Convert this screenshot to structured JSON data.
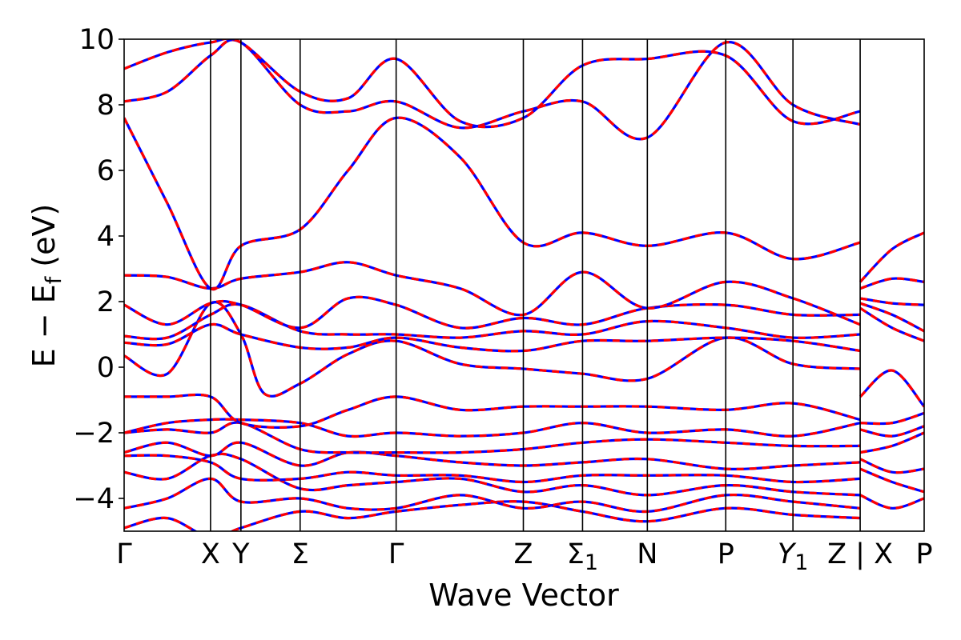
{
  "chart_data": {
    "type": "line",
    "xlabel": "Wave Vector",
    "ylabel": "E − E",
    "ylabel_sub": "f",
    "ylabel_unit": " (eV)",
    "ylim": [
      -5,
      10
    ],
    "yticks": [
      "−4",
      "−2",
      "0",
      "2",
      "4",
      "6",
      "8",
      "10"
    ],
    "ytick_values": [
      -4,
      -2,
      0,
      2,
      4,
      6,
      8,
      10
    ],
    "grid": false,
    "xlim": [
      0,
      1
    ],
    "kpoints": [
      {
        "label": "Γ",
        "x": 0.0,
        "sub": ""
      },
      {
        "label": "X",
        "x": 0.108,
        "sub": ""
      },
      {
        "label": "Y",
        "x": 0.146,
        "sub": ""
      },
      {
        "label": "Σ",
        "x": 0.22,
        "sub": ""
      },
      {
        "label": "Γ",
        "x": 0.34,
        "sub": ""
      },
      {
        "label": "Z",
        "x": 0.499,
        "sub": ""
      },
      {
        "label": "Σ",
        "x": 0.573,
        "sub": "1"
      },
      {
        "label": "N",
        "x": 0.654,
        "sub": ""
      },
      {
        "label": "P",
        "x": 0.752,
        "sub": ""
      },
      {
        "label": "Y",
        "x": 0.836,
        "sub": "1"
      },
      {
        "label": "Z | X",
        "x": 0.92,
        "sub": ""
      },
      {
        "label": "P",
        "x": 1.0,
        "sub": ""
      }
    ],
    "series_styles": [
      {
        "color": "#0000ff",
        "dash": "",
        "width": 3.2
      },
      {
        "color": "#ff0000",
        "dash": "9,7",
        "width": 3.2
      }
    ],
    "bands": [
      {
        "x": [
          0,
          0.054,
          0.108,
          0.146,
          0.22,
          0.28,
          0.34,
          0.42,
          0.499,
          0.573,
          0.654,
          0.752,
          0.836,
          0.92
        ],
        "y": [
          -4.9,
          -4.6,
          -5.2,
          -4.9,
          -4.4,
          -4.6,
          -4.4,
          -4.2,
          -4.1,
          -4.4,
          -4.7,
          -4.3,
          -4.5,
          -4.6
        ]
      },
      {
        "x": [
          0,
          0.054,
          0.108,
          0.146,
          0.22,
          0.28,
          0.34,
          0.42,
          0.499,
          0.573,
          0.654,
          0.752,
          0.836,
          0.92
        ],
        "y": [
          -4.3,
          -4.0,
          -3.4,
          -4.1,
          -4.0,
          -4.3,
          -4.3,
          -3.9,
          -4.3,
          -4.1,
          -4.4,
          -3.9,
          -4.1,
          -4.3
        ]
      },
      {
        "x": [
          0,
          0.054,
          0.108,
          0.146,
          0.22,
          0.28,
          0.34,
          0.42,
          0.499,
          0.573,
          0.654,
          0.752,
          0.836,
          0.92
        ],
        "y": [
          -3.2,
          -3.4,
          -2.7,
          -2.8,
          -3.7,
          -3.6,
          -3.5,
          -3.4,
          -3.8,
          -3.6,
          -3.9,
          -3.6,
          -3.8,
          -3.9
        ]
      },
      {
        "x": [
          0,
          0.054,
          0.108,
          0.146,
          0.22,
          0.28,
          0.34,
          0.42,
          0.499,
          0.573,
          0.654,
          0.752,
          0.836,
          0.92
        ],
        "y": [
          -2.7,
          -2.7,
          -2.9,
          -3.4,
          -3.4,
          -3.2,
          -3.3,
          -3.3,
          -3.5,
          -3.3,
          -3.3,
          -3.3,
          -3.5,
          -3.4
        ]
      },
      {
        "x": [
          0,
          0.054,
          0.108,
          0.146,
          0.22,
          0.28,
          0.34,
          0.42,
          0.499,
          0.573,
          0.654,
          0.752,
          0.836,
          0.92
        ],
        "y": [
          -2.6,
          -2.3,
          -2.7,
          -2.3,
          -3.0,
          -2.6,
          -2.7,
          -2.9,
          -3.0,
          -2.9,
          -2.8,
          -3.1,
          -3.0,
          -2.9
        ]
      },
      {
        "x": [
          0,
          0.054,
          0.108,
          0.146,
          0.22,
          0.28,
          0.34,
          0.42,
          0.499,
          0.573,
          0.654,
          0.752,
          0.836,
          0.92
        ],
        "y": [
          -2.0,
          -1.9,
          -2.0,
          -1.7,
          -2.5,
          -2.6,
          -2.6,
          -2.6,
          -2.5,
          -2.3,
          -2.2,
          -2.3,
          -2.4,
          -2.4
        ]
      },
      {
        "x": [
          0,
          0.054,
          0.108,
          0.146,
          0.22,
          0.28,
          0.34,
          0.42,
          0.499,
          0.573,
          0.654,
          0.752,
          0.836,
          0.92
        ],
        "y": [
          -2.0,
          -1.7,
          -1.6,
          -1.6,
          -1.7,
          -2.1,
          -2.0,
          -2.1,
          -2.0,
          -1.7,
          -2.0,
          -1.9,
          -2.1,
          -1.7
        ]
      },
      {
        "x": [
          0,
          0.054,
          0.108,
          0.146,
          0.22,
          0.28,
          0.34,
          0.42,
          0.499,
          0.573,
          0.654,
          0.752,
          0.836,
          0.92
        ],
        "y": [
          -0.9,
          -0.9,
          -0.9,
          -1.7,
          -1.8,
          -1.3,
          -0.9,
          -1.3,
          -1.2,
          -1.2,
          -1.2,
          -1.3,
          -1.1,
          -1.6
        ]
      },
      {
        "x": [
          0,
          0.054,
          0.108,
          0.146,
          0.175,
          0.22,
          0.28,
          0.34,
          0.42,
          0.499,
          0.573,
          0.654,
          0.752,
          0.836,
          0.92
        ],
        "y": [
          0.35,
          -0.2,
          1.95,
          1.0,
          -0.8,
          -0.5,
          0.4,
          0.8,
          0.1,
          -0.05,
          -0.2,
          -0.35,
          0.9,
          0.1,
          -0.05
        ]
      },
      {
        "x": [
          0,
          0.054,
          0.108,
          0.146,
          0.22,
          0.28,
          0.34,
          0.42,
          0.499,
          0.573,
          0.654,
          0.752,
          0.836,
          0.92
        ],
        "y": [
          0.75,
          0.7,
          1.3,
          1.0,
          0.6,
          0.6,
          0.9,
          0.6,
          0.5,
          0.8,
          0.8,
          0.9,
          0.8,
          0.5
        ]
      },
      {
        "x": [
          0,
          0.054,
          0.108,
          0.146,
          0.22,
          0.28,
          0.34,
          0.42,
          0.499,
          0.573,
          0.654,
          0.752,
          0.836,
          0.92
        ],
        "y": [
          0.95,
          0.9,
          1.6,
          1.9,
          1.1,
          1.0,
          1.0,
          0.9,
          1.1,
          1.0,
          1.4,
          1.2,
          0.9,
          1.0
        ]
      },
      {
        "x": [
          0,
          0.054,
          0.108,
          0.146,
          0.22,
          0.28,
          0.34,
          0.42,
          0.499,
          0.573,
          0.654,
          0.752,
          0.836,
          0.92
        ],
        "y": [
          1.9,
          1.3,
          1.95,
          1.9,
          1.2,
          2.1,
          1.9,
          1.2,
          1.5,
          1.3,
          1.8,
          1.9,
          1.6,
          1.6
        ]
      },
      {
        "x": [
          0,
          0.054,
          0.108,
          0.146,
          0.22,
          0.28,
          0.34,
          0.42,
          0.499,
          0.573,
          0.654,
          0.752,
          0.836,
          0.92
        ],
        "y": [
          2.8,
          2.75,
          2.4,
          2.7,
          2.9,
          3.2,
          2.8,
          2.4,
          1.6,
          2.9,
          1.8,
          2.6,
          2.1,
          1.3
        ]
      },
      {
        "x": [
          0,
          0.054,
          0.108,
          0.146,
          0.22,
          0.28,
          0.34,
          0.42,
          0.499,
          0.573,
          0.654,
          0.752,
          0.836,
          0.92
        ],
        "y": [
          7.6,
          5.0,
          2.4,
          3.7,
          4.2,
          6.0,
          7.6,
          6.4,
          3.8,
          4.1,
          3.7,
          4.1,
          3.3,
          3.8
        ]
      },
      {
        "x": [
          0,
          0.054,
          0.108,
          0.146,
          0.22,
          0.28,
          0.34,
          0.42,
          0.499,
          0.573,
          0.654,
          0.752,
          0.836,
          0.92
        ],
        "y": [
          8.1,
          8.4,
          9.5,
          9.9,
          8.0,
          7.8,
          8.1,
          7.3,
          7.8,
          8.1,
          7.0,
          9.9,
          8.0,
          7.4
        ]
      },
      {
        "x": [
          0,
          0.054,
          0.108,
          0.146,
          0.22,
          0.28,
          0.34,
          0.42,
          0.499,
          0.573,
          0.654,
          0.752,
          0.836,
          0.92
        ],
        "y": [
          9.1,
          9.6,
          9.9,
          9.9,
          8.4,
          8.2,
          9.4,
          7.5,
          7.6,
          9.2,
          9.4,
          9.5,
          7.5,
          7.8
        ]
      },
      {
        "x": [
          0.92,
          0.96,
          1.0
        ],
        "y": [
          2.6,
          3.6,
          4.1
        ]
      },
      {
        "x": [
          0.92,
          0.96,
          1.0
        ],
        "y": [
          2.4,
          2.7,
          2.6
        ]
      },
      {
        "x": [
          0.92,
          0.96,
          1.0
        ],
        "y": [
          2.1,
          1.95,
          1.9
        ]
      },
      {
        "x": [
          0.92,
          0.96,
          1.0
        ],
        "y": [
          1.95,
          1.6,
          1.1
        ]
      },
      {
        "x": [
          0.92,
          0.96,
          1.0
        ],
        "y": [
          1.8,
          1.2,
          0.8
        ]
      },
      {
        "x": [
          0.92,
          0.96,
          1.0
        ],
        "y": [
          -0.9,
          -0.1,
          -1.2
        ]
      },
      {
        "x": [
          0.92,
          0.96,
          1.0
        ],
        "y": [
          -1.7,
          -1.7,
          -1.4
        ]
      },
      {
        "x": [
          0.92,
          0.96,
          1.0
        ],
        "y": [
          -1.9,
          -2.1,
          -1.8
        ]
      },
      {
        "x": [
          0.92,
          0.96,
          1.0
        ],
        "y": [
          -2.6,
          -2.4,
          -2.0
        ]
      },
      {
        "x": [
          0.92,
          0.96,
          1.0
        ],
        "y": [
          -2.8,
          -3.2,
          -3.1
        ]
      },
      {
        "x": [
          0.92,
          0.96,
          1.0
        ],
        "y": [
          -3.1,
          -3.5,
          -3.8
        ]
      },
      {
        "x": [
          0.92,
          0.96,
          1.0
        ],
        "y": [
          -3.9,
          -4.3,
          -4.0
        ]
      }
    ]
  }
}
